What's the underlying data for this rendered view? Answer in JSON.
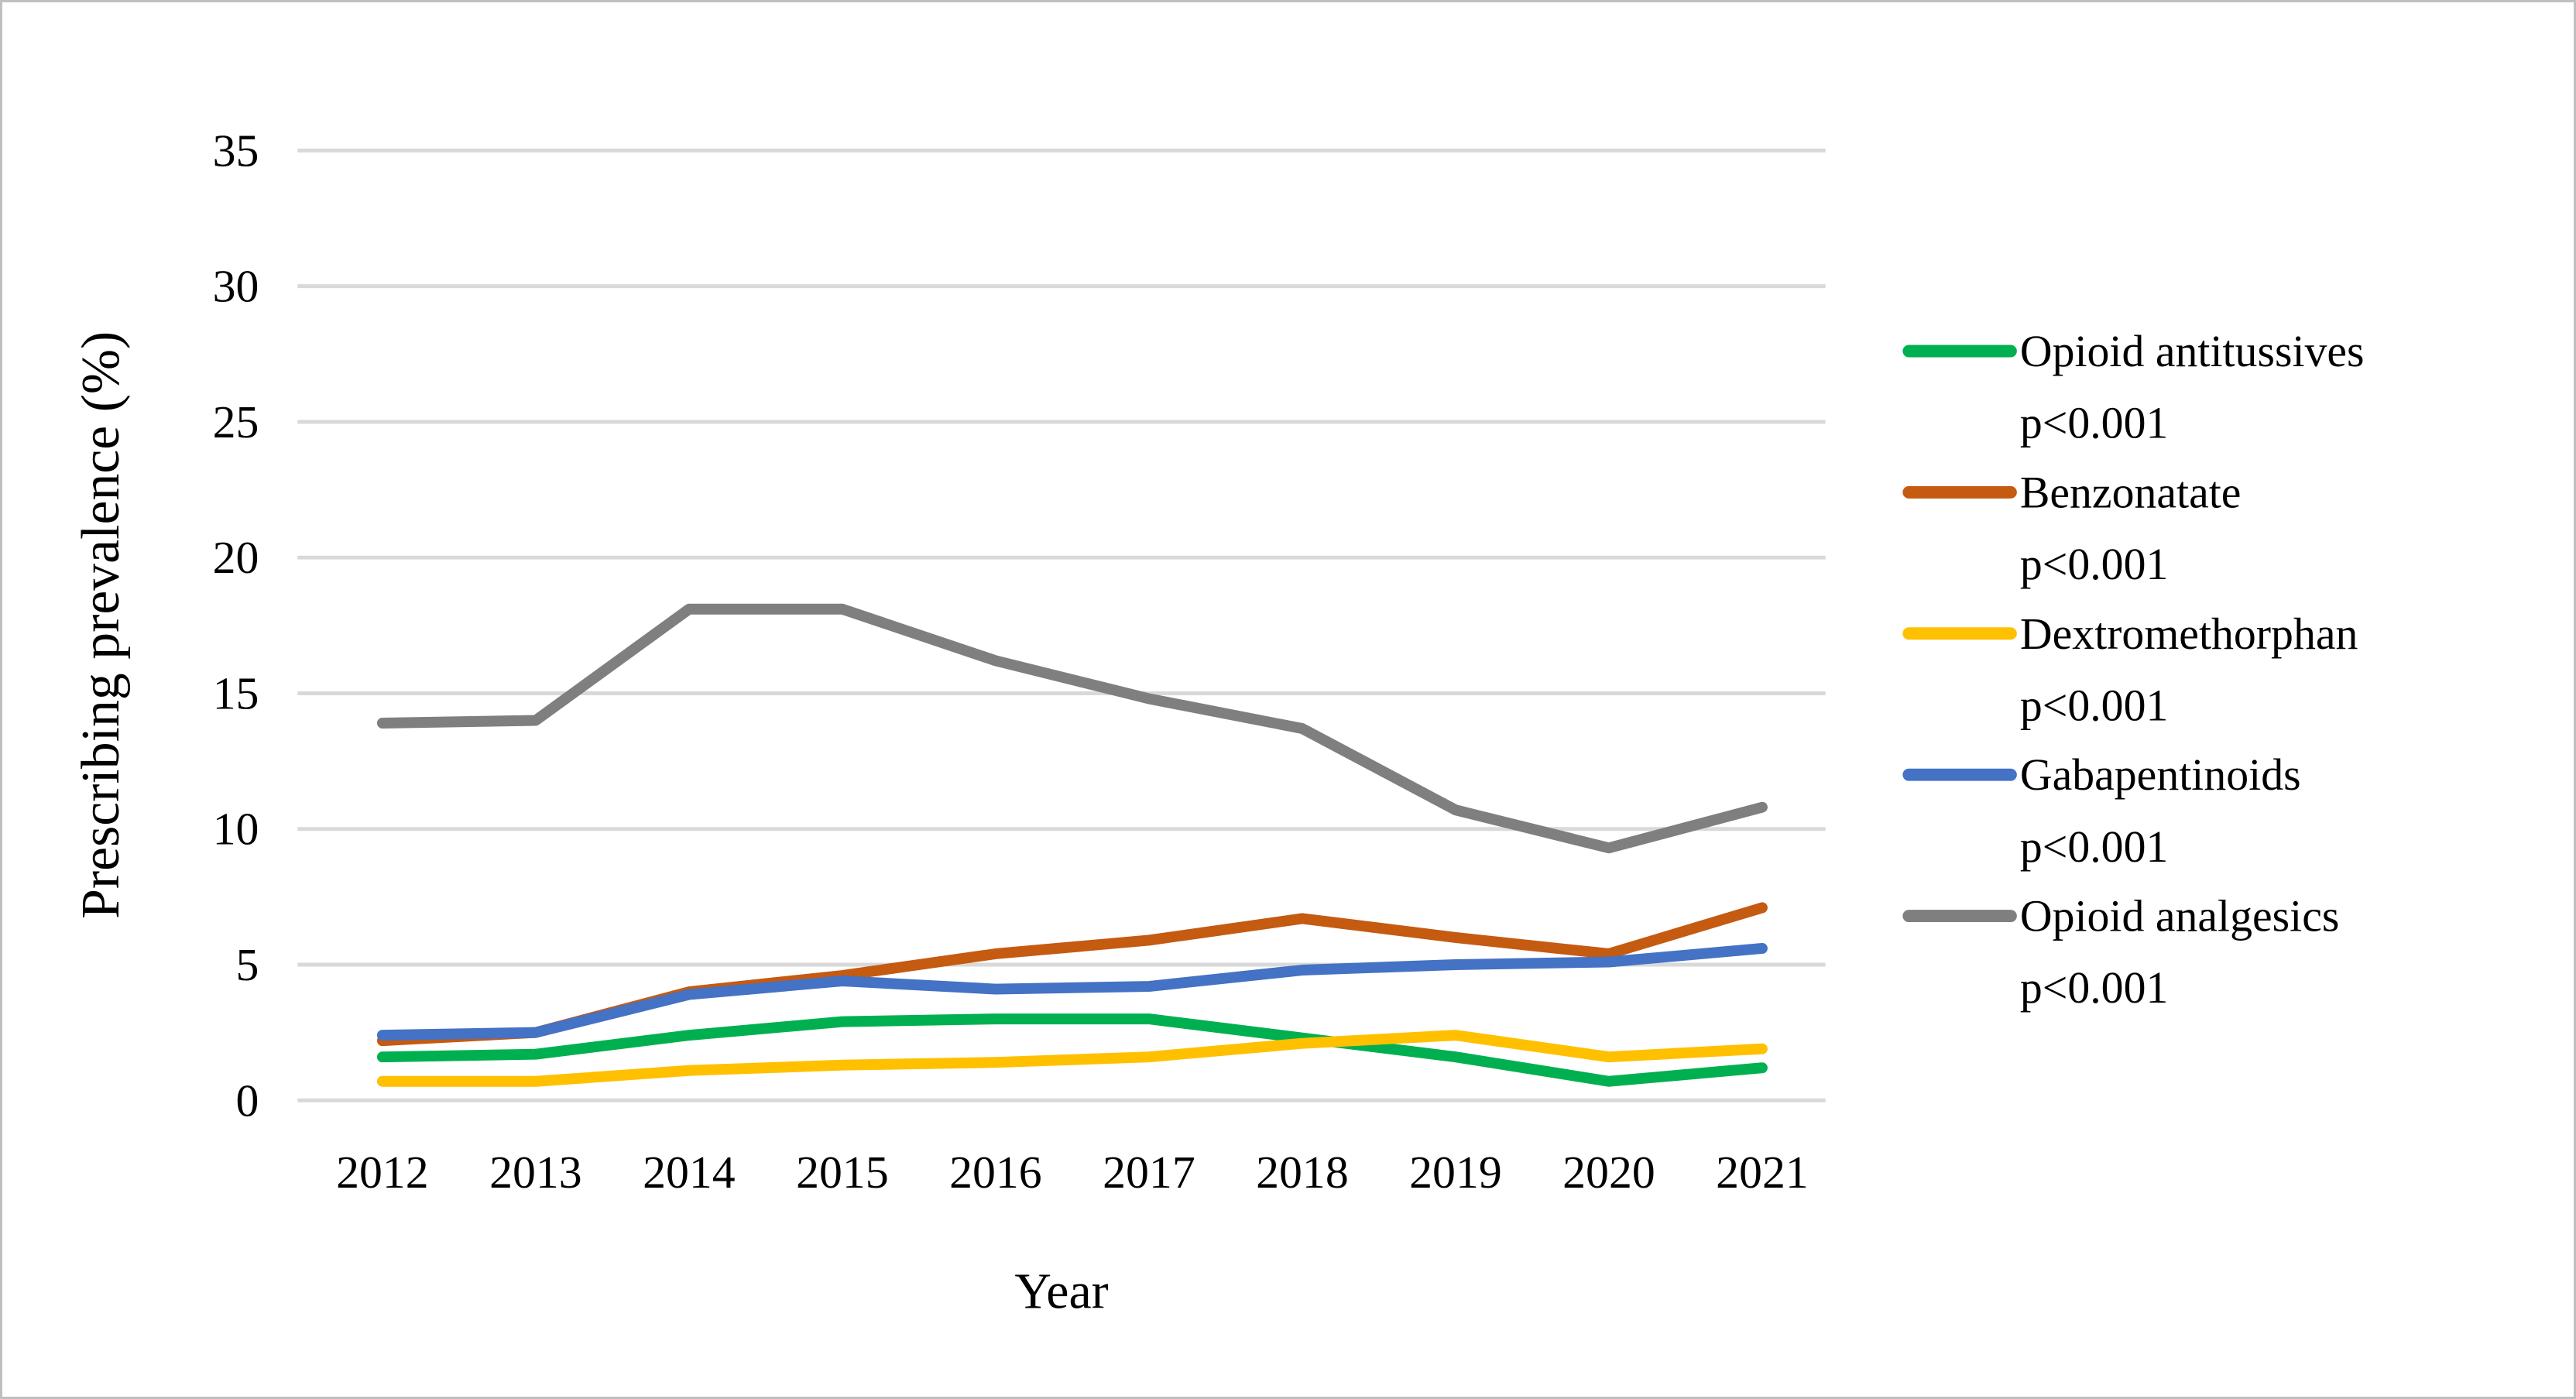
{
  "figure": {
    "background_color": "#FFFFFF",
    "border_color": "#BFBFBF",
    "gridline_color": "#D9D9D9",
    "text_color": "#000000"
  },
  "chart_data": {
    "type": "line",
    "title": "",
    "xlabel": "Year",
    "ylabel": "Prescribing prevalence (%)",
    "x": [
      2012,
      2013,
      2014,
      2015,
      2016,
      2017,
      2018,
      2019,
      2020,
      2021
    ],
    "ylim": [
      0,
      35
    ],
    "yticks": [
      0,
      5,
      10,
      15,
      20,
      25,
      30,
      35
    ],
    "grid": true,
    "legend_position": "right",
    "series": [
      {
        "name": "Opioid antitussives",
        "significance": "p<0.001",
        "color": "#00B050",
        "values": [
          1.6,
          1.7,
          2.4,
          2.9,
          3.0,
          3.0,
          2.3,
          1.6,
          0.7,
          1.2
        ]
      },
      {
        "name": "Benzonatate",
        "significance": "p<0.001",
        "color": "#C55A11",
        "values": [
          2.2,
          2.5,
          4.0,
          4.6,
          5.4,
          5.9,
          6.7,
          6.0,
          5.4,
          7.1
        ]
      },
      {
        "name": "Dextromethorphan",
        "significance": "p<0.001",
        "color": "#FFC000",
        "values": [
          0.7,
          0.7,
          1.1,
          1.3,
          1.4,
          1.6,
          2.1,
          2.4,
          1.6,
          1.9
        ]
      },
      {
        "name": "Gabapentinoids",
        "significance": "p<0.001",
        "color": "#4472C4",
        "values": [
          2.4,
          2.5,
          3.9,
          4.4,
          4.1,
          4.2,
          4.8,
          5.0,
          5.1,
          5.6
        ]
      },
      {
        "name": "Opioid analgesics",
        "significance": "p<0.001",
        "color": "#7F7F7F",
        "values": [
          13.9,
          14.0,
          18.1,
          18.1,
          16.2,
          14.8,
          13.7,
          10.7,
          9.3,
          10.8
        ]
      }
    ]
  }
}
